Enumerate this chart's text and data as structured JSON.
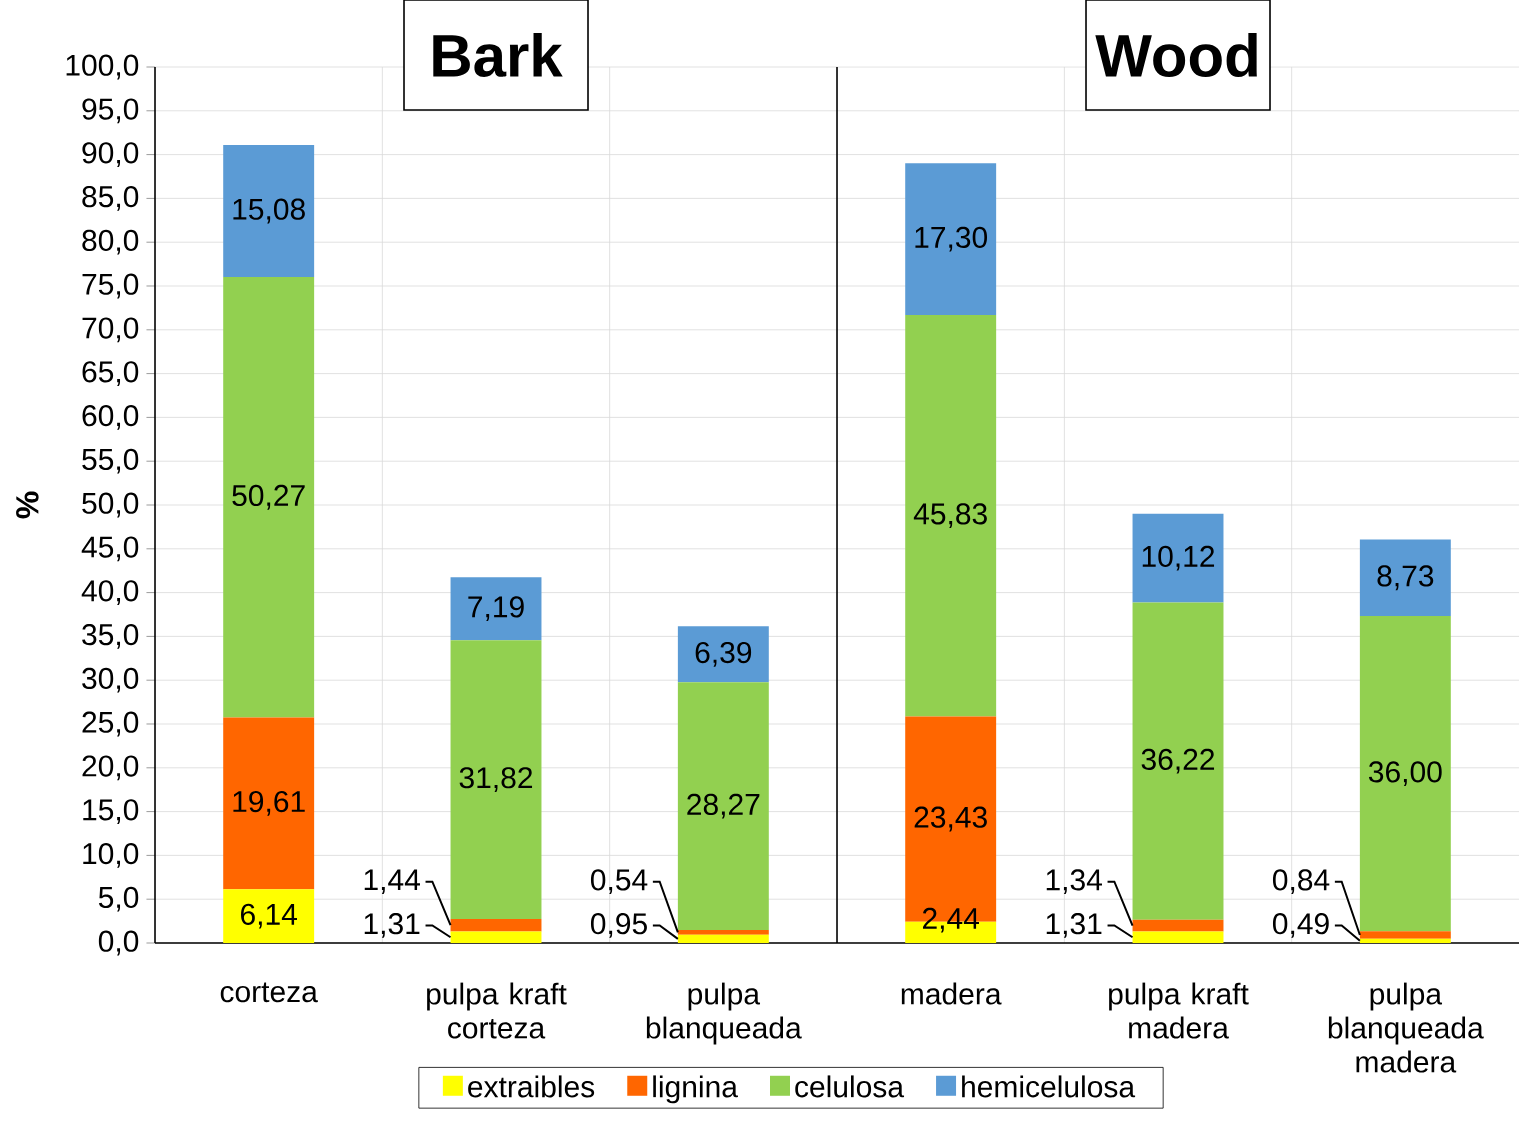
{
  "chart_data": [
    {
      "type": "bar",
      "stacked": true,
      "title": "Bark",
      "ylabel": "%",
      "categories": [
        "corteza",
        "pulpa kraft corteza",
        "pulpa blanqueada"
      ],
      "series": [
        {
          "name": "extraibles",
          "color": "#ffff00",
          "values": [
            6.14,
            1.31,
            0.95
          ],
          "value_labels": [
            "6,14",
            "1,31",
            "0,95"
          ]
        },
        {
          "name": "lignina",
          "color": "#ff6600",
          "values": [
            19.61,
            1.44,
            0.54
          ],
          "value_labels": [
            "19,61",
            "1,44",
            "0,54"
          ]
        },
        {
          "name": "celulosa",
          "color": "#92d050",
          "values": [
            50.27,
            31.82,
            28.27
          ],
          "value_labels": [
            "50,27",
            "31,82",
            "28,27"
          ]
        },
        {
          "name": "hemicelulosa",
          "color": "#5b9bd5",
          "values": [
            15.08,
            7.19,
            6.39
          ],
          "value_labels": [
            "15,08",
            "7,19",
            "6,39"
          ]
        }
      ],
      "ylim": [
        0,
        100
      ],
      "yticks": [
        {
          "value": 0,
          "label": "0,0"
        },
        {
          "value": 5,
          "label": "5,0"
        },
        {
          "value": 10,
          "label": "10,0"
        },
        {
          "value": 15,
          "label": "15,0"
        },
        {
          "value": 20,
          "label": "20,0"
        },
        {
          "value": 25,
          "label": "25,0"
        },
        {
          "value": 30,
          "label": "30,0"
        },
        {
          "value": 35,
          "label": "35,0"
        },
        {
          "value": 40,
          "label": "40,0"
        },
        {
          "value": 45,
          "label": "45,0"
        },
        {
          "value": 50,
          "label": "50,0"
        },
        {
          "value": 55,
          "label": "55,0"
        },
        {
          "value": 60,
          "label": "60,0"
        },
        {
          "value": 65,
          "label": "65,0"
        },
        {
          "value": 70,
          "label": "70,0"
        },
        {
          "value": 75,
          "label": "75,0"
        },
        {
          "value": 80,
          "label": "80,0"
        },
        {
          "value": 85,
          "label": "85,0"
        },
        {
          "value": 90,
          "label": "90,0"
        },
        {
          "value": 95,
          "label": "95,0"
        },
        {
          "value": 100,
          "label": "100,0"
        }
      ],
      "grid": true,
      "legend": "bottom"
    },
    {
      "type": "bar",
      "stacked": true,
      "title": "Wood",
      "categories": [
        "madera",
        "pulpa kraft madera",
        "pulpa blanqueada madera"
      ],
      "series": [
        {
          "color": "#ffff00",
          "values": [
            2.44,
            1.31,
            0.49
          ],
          "value_labels": [
            "2,44",
            "1,31",
            "0,49"
          ]
        },
        {
          "color": "#ff6600",
          "values": [
            23.43,
            1.34,
            0.84
          ],
          "value_labels": [
            "23,43",
            "1,34",
            "0,84"
          ]
        },
        {
          "color": "#92d050",
          "values": [
            45.83,
            36.22,
            36.0
          ],
          "value_labels": [
            "45,83",
            "36,22",
            "36,00"
          ]
        },
        {
          "color": "#5b9bd5",
          "values": [
            17.3,
            10.12,
            8.73
          ],
          "value_labels": [
            "17,30",
            "10,12",
            "8,73"
          ]
        }
      ],
      "ylim": [
        0,
        100
      ],
      "yticks": [
        0,
        5,
        10,
        15,
        20,
        25,
        30,
        35,
        40,
        45,
        50,
        55,
        60,
        65,
        70,
        75,
        80,
        85,
        90,
        95,
        100
      ],
      "tick_labels": "x",
      "grid": true
    }
  ]
}
